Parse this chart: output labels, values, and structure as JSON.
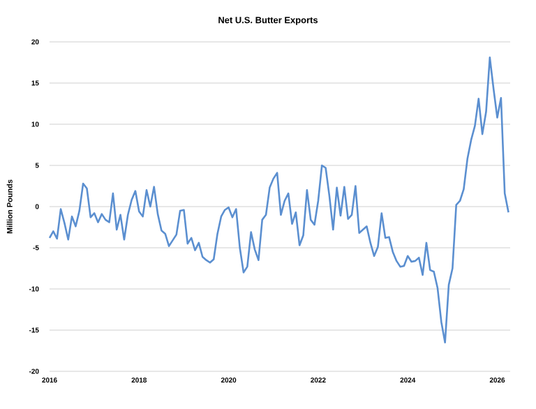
{
  "chart_data": {
    "type": "line",
    "title": "Net U.S. Butter Exports",
    "ylabel": "Million Pounds",
    "xlim": [
      "2016-01-01",
      "2026-04-15"
    ],
    "xticks": [
      "2016",
      "2018",
      "2020",
      "2022",
      "2024",
      "2026"
    ],
    "ylim": [
      -20,
      20
    ],
    "yticks": [
      -20,
      -15,
      -10,
      -5,
      0,
      5,
      10,
      15,
      20
    ],
    "grid": "y",
    "series": [
      {
        "color": "#5b8fd0",
        "x": [
          "2016-01",
          "2016-02",
          "2016-03",
          "2016-04",
          "2016-05",
          "2016-06",
          "2016-07",
          "2016-08",
          "2016-09",
          "2016-10",
          "2016-11",
          "2016-12",
          "2017-01",
          "2017-02",
          "2017-03",
          "2017-04",
          "2017-05",
          "2017-06",
          "2017-07",
          "2017-08",
          "2017-09",
          "2017-10",
          "2017-11",
          "2017-12",
          "2018-01",
          "2018-02",
          "2018-03",
          "2018-04",
          "2018-05",
          "2018-06",
          "2018-07",
          "2018-08",
          "2018-09",
          "2018-10",
          "2018-11",
          "2018-12",
          "2019-01",
          "2019-02",
          "2019-03",
          "2019-04",
          "2019-05",
          "2019-06",
          "2019-07",
          "2019-08",
          "2019-09",
          "2019-10",
          "2019-11",
          "2019-12",
          "2020-01",
          "2020-02",
          "2020-03",
          "2020-04",
          "2020-05",
          "2020-06",
          "2020-07",
          "2020-08",
          "2020-09",
          "2020-10",
          "2020-11",
          "2020-12",
          "2021-01",
          "2021-02",
          "2021-03",
          "2021-04",
          "2021-05",
          "2021-06",
          "2021-07",
          "2021-08",
          "2021-09",
          "2021-10",
          "2021-11",
          "2021-12",
          "2022-01",
          "2022-02",
          "2022-03",
          "2022-04",
          "2022-05",
          "2022-06",
          "2022-07",
          "2022-08",
          "2022-09",
          "2022-10",
          "2022-11",
          "2022-12",
          "2023-01",
          "2023-02",
          "2023-03",
          "2023-04",
          "2023-05",
          "2023-06",
          "2023-07",
          "2023-08",
          "2023-09",
          "2023-10",
          "2023-11",
          "2023-12",
          "2024-01",
          "2024-02",
          "2024-03",
          "2024-04",
          "2024-05",
          "2024-06",
          "2024-07",
          "2024-08",
          "2024-09",
          "2024-10",
          "2024-11",
          "2024-12",
          "2025-01",
          "2025-02",
          "2025-03",
          "2025-04",
          "2025-05",
          "2025-06",
          "2025-07",
          "2025-08",
          "2025-09",
          "2025-10",
          "2025-11",
          "2025-12",
          "2026-01",
          "2026-02",
          "2026-03",
          "2026-04"
        ],
        "values": [
          -3.8,
          -3.0,
          -3.9,
          -0.3,
          -2.0,
          -4.0,
          -1.2,
          -2.4,
          -0.5,
          2.8,
          2.2,
          -1.3,
          -0.8,
          -1.9,
          -0.9,
          -1.6,
          -1.9,
          1.6,
          -2.8,
          -1.0,
          -4.0,
          -1.0,
          0.8,
          1.9,
          -0.6,
          -1.2,
          2.0,
          0.0,
          2.4,
          -0.9,
          -2.9,
          -3.3,
          -4.8,
          -4.1,
          -3.4,
          -0.5,
          -0.4,
          -4.5,
          -3.8,
          -5.3,
          -4.4,
          -6.1,
          -6.5,
          -6.8,
          -6.4,
          -3.3,
          -1.2,
          -0.4,
          -0.1,
          -1.3,
          -0.3,
          -5.0,
          -8.0,
          -7.3,
          -3.1,
          -5.2,
          -6.5,
          -1.6,
          -1.0,
          2.3,
          3.4,
          4.1,
          -1.0,
          0.7,
          1.6,
          -2.1,
          -0.7,
          -4.7,
          -3.5,
          2.0,
          -1.6,
          -2.2,
          0.7,
          5.0,
          4.7,
          1.3,
          -2.8,
          2.3,
          -1.1,
          2.4,
          -1.5,
          -1.0,
          2.5,
          -3.2,
          -2.8,
          -2.4,
          -4.4,
          -6.0,
          -4.9,
          -0.8,
          -3.8,
          -3.7,
          -5.5,
          -6.6,
          -7.3,
          -7.2,
          -6.0,
          -6.7,
          -6.6,
          -6.2,
          -8.3,
          -4.4,
          -7.7,
          -7.9,
          -9.9,
          -14.0,
          -16.5,
          -9.5,
          -7.5,
          0.2,
          0.7,
          2.1,
          5.8,
          8.1,
          9.8,
          13.1,
          8.8,
          11.5,
          18.1,
          14.3,
          10.8,
          13.2,
          1.6,
          -0.7
        ]
      }
    ]
  }
}
